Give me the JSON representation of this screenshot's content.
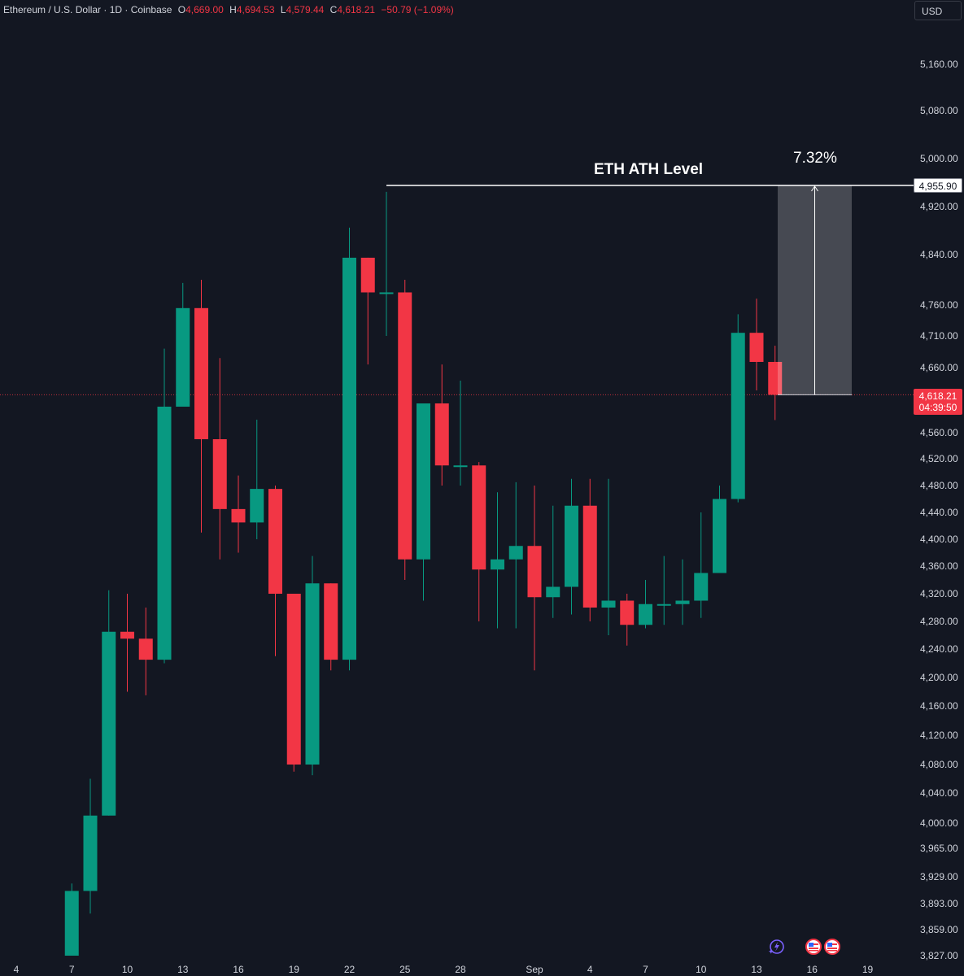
{
  "legend": {
    "symbol": "Ethereum / U.S. Dollar · 1D · Coinbase",
    "open_label": "O",
    "open": "4,669.00",
    "high_label": "H",
    "high": "4,694.53",
    "low_label": "L",
    "low": "4,579.44",
    "close_label": "C",
    "close": "4,618.21",
    "change": "−50.79 (−1.09%)"
  },
  "currency": "USD",
  "annotations": {
    "ath_title": "ETH ATH Level",
    "ath_price": "4,955.90",
    "percent": "7.32%",
    "current_price": "4,618.21",
    "countdown": "04:39:50"
  },
  "colors": {
    "up": "#089981",
    "down": "#f23645",
    "background": "#131722",
    "text": "#d1d4dc"
  },
  "icons": [
    "lightning-icon",
    "us-flag-icon",
    "us-flag-icon"
  ],
  "chart_data": {
    "type": "candlestick",
    "title": "",
    "price_axis_ticks": [
      "5,160.00",
      "5,080.00",
      "5,000.00",
      "4,920.00",
      "4,840.00",
      "4,760.00",
      "4,710.00",
      "4,660.00",
      "4,560.00",
      "4,520.00",
      "4,480.00",
      "4,440.00",
      "4,400.00",
      "4,360.00",
      "4,320.00",
      "4,280.00",
      "4,240.00",
      "4,200.00",
      "4,160.00",
      "4,120.00",
      "4,080.00",
      "4,040.00",
      "4,000.00",
      "3,965.00",
      "3,929.00",
      "3,893.00",
      "3,859.00",
      "3,827.00"
    ],
    "time_axis_ticks": [
      {
        "i": 0,
        "label": "4"
      },
      {
        "i": 3,
        "label": "7"
      },
      {
        "i": 6,
        "label": "10"
      },
      {
        "i": 9,
        "label": "13"
      },
      {
        "i": 12,
        "label": "16"
      },
      {
        "i": 15,
        "label": "19"
      },
      {
        "i": 18,
        "label": "22"
      },
      {
        "i": 21,
        "label": "25"
      },
      {
        "i": 24,
        "label": "28"
      },
      {
        "i": 28,
        "label": "Sep"
      },
      {
        "i": 31,
        "label": "4"
      },
      {
        "i": 34,
        "label": "7"
      },
      {
        "i": 37,
        "label": "10"
      },
      {
        "i": 40,
        "label": "13"
      },
      {
        "i": 43,
        "label": "16"
      },
      {
        "i": 46,
        "label": "19"
      }
    ],
    "first_candle_index": 3,
    "ohlc": [
      [
        3827,
        3910,
        3827,
        3920
      ],
      [
        3910,
        4010,
        3880,
        4060
      ],
      [
        4010,
        4265,
        4010,
        4325
      ],
      [
        4265,
        4255,
        4180,
        4320
      ],
      [
        4255,
        4225,
        4175,
        4300
      ],
      [
        4225,
        4600,
        4220,
        4690
      ],
      [
        4600,
        4755,
        4600,
        4795
      ],
      [
        4755,
        4550,
        4410,
        4800
      ],
      [
        4550,
        4445,
        4370,
        4675
      ],
      [
        4445,
        4425,
        4380,
        4495
      ],
      [
        4425,
        4475,
        4400,
        4580
      ],
      [
        4475,
        4320,
        4230,
        4480
      ],
      [
        4320,
        4080,
        4070,
        4320
      ],
      [
        4080,
        4335,
        4065,
        4375
      ],
      [
        4335,
        4225,
        4210,
        4335
      ],
      [
        4225,
        4835,
        4210,
        4885
      ],
      [
        4835,
        4780,
        4665,
        4835
      ],
      [
        4780,
        4780,
        4710,
        4945
      ],
      [
        4780,
        4370,
        4340,
        4800
      ],
      [
        4370,
        4605,
        4310,
        4605
      ],
      [
        4605,
        4510,
        4480,
        4665
      ],
      [
        4510,
        4510,
        4480,
        4640
      ],
      [
        4510,
        4355,
        4280,
        4515
      ],
      [
        4355,
        4370,
        4270,
        4470
      ],
      [
        4370,
        4390,
        4270,
        4485
      ],
      [
        4390,
        4315,
        4210,
        4480
      ],
      [
        4315,
        4330,
        4285,
        4450
      ],
      [
        4330,
        4450,
        4290,
        4490
      ],
      [
        4450,
        4300,
        4280,
        4490
      ],
      [
        4300,
        4310,
        4260,
        4490
      ],
      [
        4310,
        4275,
        4245,
        4320
      ],
      [
        4275,
        4305,
        4270,
        4340
      ],
      [
        4305,
        4305,
        4275,
        4375
      ],
      [
        4305,
        4310,
        4275,
        4370
      ],
      [
        4310,
        4350,
        4285,
        4440
      ],
      [
        4350,
        4460,
        4350,
        4480
      ],
      [
        4460,
        4715,
        4455,
        4745
      ],
      [
        4715,
        4669,
        4625,
        4770
      ],
      [
        4669,
        4618.21,
        4579.44,
        4694.53
      ]
    ],
    "ath_level": 4955.9,
    "measure": {
      "from": 4618.21,
      "to": 4955.9,
      "percent": "7.32%"
    }
  }
}
